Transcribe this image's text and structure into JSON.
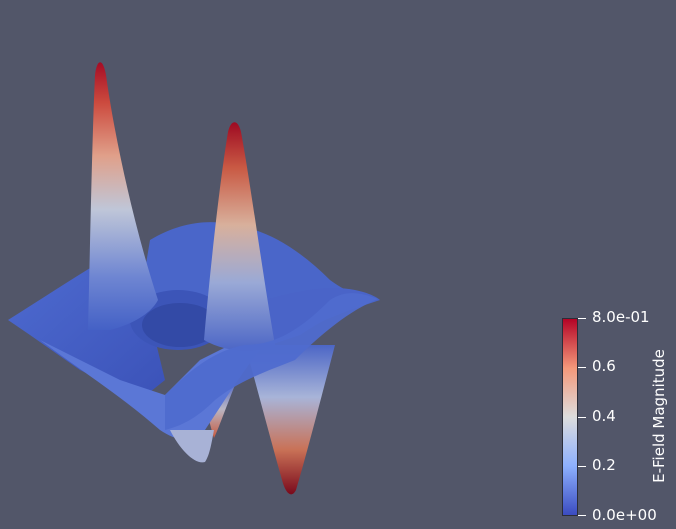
{
  "colorbar": {
    "title": "E-Field Magnitude",
    "range": [
      0.0,
      0.8
    ],
    "colormap": "cool-to-warm",
    "colors": [
      "#3b4cc0",
      "#8db0fe",
      "#dddddd",
      "#f4987a",
      "#b40426"
    ],
    "ticks": [
      {
        "value": 0.8,
        "label": "8.0e-01"
      },
      {
        "value": 0.6,
        "label": "0.6"
      },
      {
        "value": 0.4,
        "label": "0.4"
      },
      {
        "value": 0.2,
        "label": "0.2"
      },
      {
        "value": 0.0,
        "label": "0.0e+00"
      }
    ]
  },
  "scene": {
    "background": "#525669",
    "surface": "3d-surface-plot"
  }
}
